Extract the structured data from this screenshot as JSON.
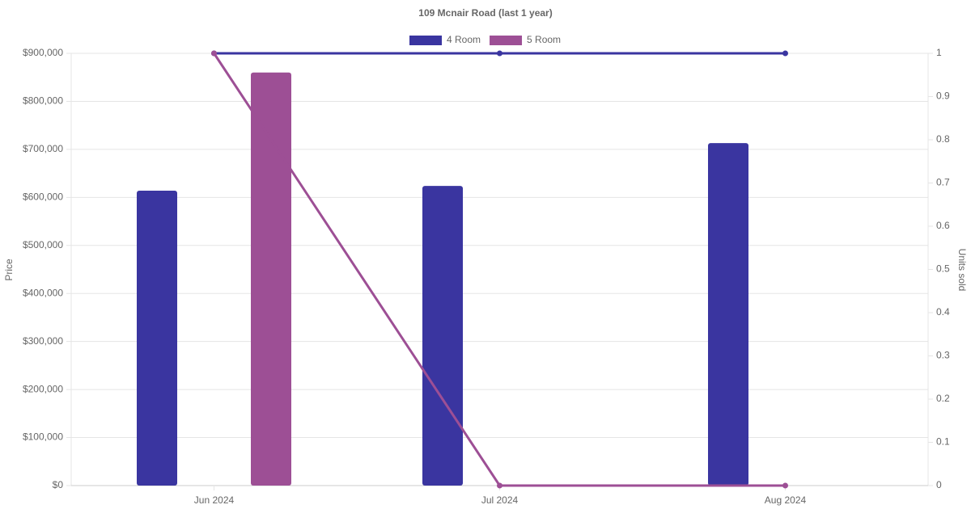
{
  "chart_data": {
    "type": "bar",
    "title": "109 Mcnair Road (last 1 year)",
    "y_label": "Price",
    "y2_label": "Units sold",
    "categories": [
      "Jun 2024",
      "Jul 2024",
      "Aug 2024"
    ],
    "series": [
      {
        "name": "4 Room",
        "color": "#3a35a0",
        "values": [
          614000,
          624000,
          713000
        ],
        "units_sold": [
          1,
          1,
          1
        ]
      },
      {
        "name": "5 Room",
        "color": "#9d4f95",
        "values": [
          860000,
          null,
          null
        ],
        "units_sold": [
          1,
          0,
          0
        ]
      }
    ],
    "ylim": [
      0,
      900000
    ],
    "yticks": [
      {
        "value": 0,
        "label": "$0"
      },
      {
        "value": 100000,
        "label": "$100,000"
      },
      {
        "value": 200000,
        "label": "$200,000"
      },
      {
        "value": 300000,
        "label": "$300,000"
      },
      {
        "value": 400000,
        "label": "$400,000"
      },
      {
        "value": 500000,
        "label": "$500,000"
      },
      {
        "value": 600000,
        "label": "$600,000"
      },
      {
        "value": 700000,
        "label": "$700,000"
      },
      {
        "value": 800000,
        "label": "$800,000"
      },
      {
        "value": 900000,
        "label": "$900,000"
      }
    ],
    "y2lim": [
      0,
      1
    ],
    "y2ticks": [
      0,
      0.1,
      0.2,
      0.3,
      0.4,
      0.5,
      0.6,
      0.7,
      0.8,
      0.9,
      1
    ],
    "grid": true
  }
}
